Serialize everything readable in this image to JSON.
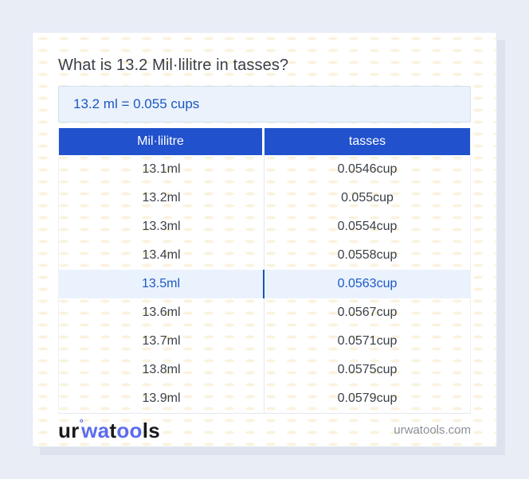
{
  "title": "What is 13.2 Mil·lilitre in tasses?",
  "result": {
    "text": "13.2 ml = 0.055 cups"
  },
  "table": {
    "headers": [
      "Mil·lilitre",
      "tasses"
    ],
    "highlight_index": 4,
    "rows": [
      [
        "13.1ml",
        "0.0546cup"
      ],
      [
        "13.2ml",
        "0.055cup"
      ],
      [
        "13.3ml",
        "0.0554cup"
      ],
      [
        "13.4ml",
        "0.0558cup"
      ],
      [
        "13.5ml",
        "0.0563cup"
      ],
      [
        "13.6ml",
        "0.0567cup"
      ],
      [
        "13.7ml",
        "0.0571cup"
      ],
      [
        "13.8ml",
        "0.0575cup"
      ],
      [
        "13.9ml",
        "0.0579cup"
      ]
    ]
  },
  "footer": {
    "logo": {
      "seg1": "ur",
      "degree": "°",
      "seg2": "wa",
      "seg3": "t",
      "seg4": "oo",
      "seg5": "ls"
    },
    "domain": "urwatools.com"
  },
  "colors": {
    "page_background": "#e9edf6",
    "card_background": "#ffffff",
    "card_shadow": "#dde3ee",
    "table_header_blue": "#2151cc",
    "result_background": "#ebf2fb",
    "result_border": "#d0e0f3",
    "result_text_blue": "#1b57c2",
    "highlight_row_background": "#e9f2fd",
    "highlight_row_text": "#1f58c4",
    "highlight_divider": "#1d52b4",
    "row_text": "#3b4148",
    "muted_text": "#8b909b",
    "brand_blue": "#5b6bf0",
    "brand_dark": "#17191e"
  }
}
